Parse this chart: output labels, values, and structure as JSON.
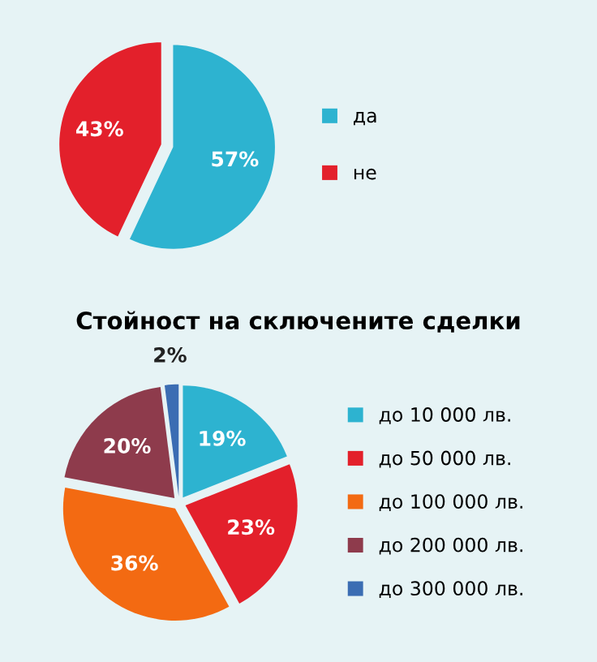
{
  "chart_data": [
    {
      "type": "pie",
      "categories": [
        "да",
        "не"
      ],
      "values": [
        57,
        43
      ],
      "colors": [
        "#2db3d0",
        "#e3202b"
      ],
      "value_labels": [
        "57%",
        "43%"
      ],
      "legend": "right"
    },
    {
      "type": "pie",
      "title": "Стойност на сключените сделки",
      "categories": [
        "до 10 000 лв.",
        "до 50 000 лв.",
        "до 100 000 лв.",
        "до 200 000 лв.",
        "до 300 000 лв."
      ],
      "values": [
        19,
        23,
        36,
        20,
        2
      ],
      "colors": [
        "#2db3d0",
        "#e3202b",
        "#f36a12",
        "#8e3b4c",
        "#3b6db3"
      ],
      "value_labels": [
        "19%",
        "23%",
        "36%",
        "20%",
        "2%"
      ],
      "legend": "right"
    }
  ]
}
